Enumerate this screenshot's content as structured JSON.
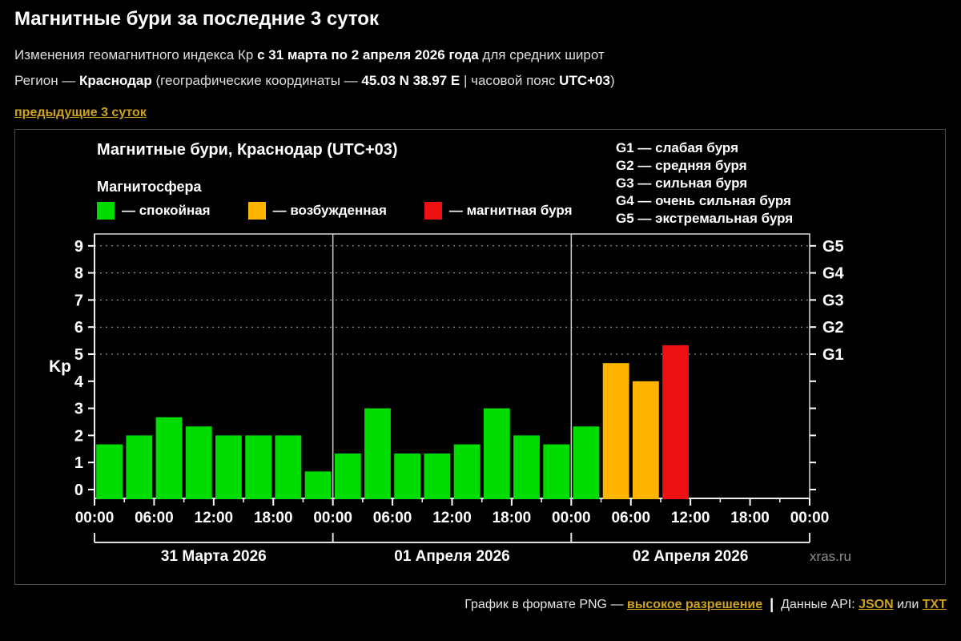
{
  "page": {
    "title": "Магнитные бури за последние 3 суток",
    "subtitle": {
      "pre": "Изменения геомагнитного индекса Кр ",
      "bold": "с 31 марта по 2 апреля 2026 года",
      "post": " для средних широт"
    },
    "region": {
      "pre": "Регион — ",
      "city": "Краснодар",
      "mid": " (географические координаты — ",
      "coords": "45.03 N 38.97 E",
      "mid2": " | часовой пояс ",
      "tz": "UTC+03",
      "post": ")"
    },
    "prev_link": "предыдущие 3 суток"
  },
  "chart": {
    "title": "Магнитные бури, Краснодар (UTC+03)",
    "legend_title": "Магнитосфера",
    "legend": [
      {
        "name": "quiet",
        "label": "— спокойная",
        "color": "#00dc00"
      },
      {
        "name": "excited",
        "label": "— возбужденная",
        "color": "#ffb400"
      },
      {
        "name": "storm",
        "label": "— магнитная буря",
        "color": "#ee1111"
      }
    ],
    "g_legend": [
      "G1 — слабая буря",
      "G2 — средняя буря",
      "G3 — сильная буря",
      "G4 — очень сильная буря",
      "G5 — экстремальная буря"
    ],
    "watermark": "xras.ru"
  },
  "chart_data": {
    "type": "bar",
    "title": "Магнитные бури, Краснодар (UTC+03)",
    "ylabel": "Kp",
    "ylim": [
      0,
      9
    ],
    "yticks": [
      0,
      1,
      2,
      3,
      4,
      5,
      6,
      7,
      8,
      9
    ],
    "grid": "dotted horizontal lines at storm levels",
    "g_levels": {
      "G1": 5,
      "G2": 6,
      "G3": 7,
      "G4": 8,
      "G5": 9
    },
    "hours_per_bar": 3,
    "time_labels": [
      "00:00",
      "06:00",
      "12:00",
      "18:00"
    ],
    "final_time_label": "00:00",
    "days": [
      {
        "date": "31 Марта 2026",
        "values": [
          1.67,
          2,
          2.67,
          2.33,
          2,
          2,
          2,
          0.67
        ]
      },
      {
        "date": "01 Апреля 2026",
        "values": [
          1.33,
          3,
          1.33,
          1.33,
          1.67,
          3,
          2,
          1.67
        ]
      },
      {
        "date": "02 Апреля 2026",
        "values": [
          2.33,
          4.67,
          4,
          5.33,
          null,
          null,
          null,
          null
        ]
      }
    ],
    "color_thresholds": {
      "excited_from": 4,
      "storm_from": 5
    },
    "colors": {
      "quiet": "#00dc00",
      "excited": "#ffb400",
      "storm": "#ee1111"
    }
  },
  "footer": {
    "png_label": "График в формате PNG — ",
    "hires_link": "высокое разрешение",
    "separator": "|",
    "api_label": "Данные API: ",
    "json_link": "JSON",
    "or_label": " или ",
    "txt_link": "TXT"
  }
}
